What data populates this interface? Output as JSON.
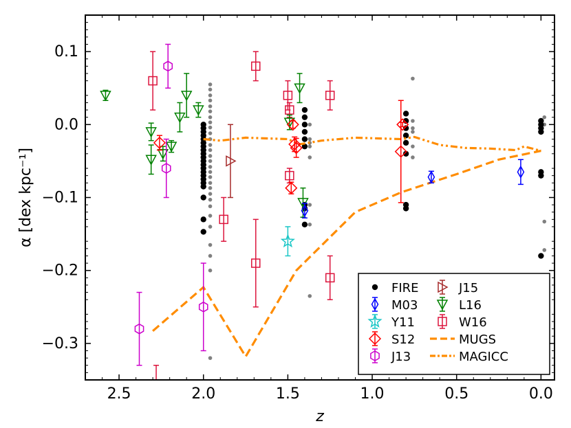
{
  "chart_data": {
    "type": "scatter",
    "xlabel": "z",
    "ylabel": "α [dex kpc⁻¹]",
    "xlim": [
      2.7,
      -0.08
    ],
    "ylim": [
      -0.35,
      0.15
    ],
    "x_inverted": true,
    "xticks": [
      2.5,
      2.0,
      1.5,
      1.0,
      0.5,
      0.0
    ],
    "xtick_labels": [
      "2.5",
      "2.0",
      "1.5",
      "1.0",
      "0.5",
      "0.0"
    ],
    "yticks": [
      0.1,
      0.0,
      -0.1,
      -0.2,
      -0.3
    ],
    "ytick_labels": [
      "0.1",
      "0.0",
      "−0.1",
      "−0.2",
      "−0.3"
    ],
    "grid": false,
    "legend_position": "lower-right",
    "legend_items": [
      "FIRE",
      "M03",
      "Y11",
      "S12",
      "J13",
      "J15",
      "L16",
      "W16",
      "MUGS",
      "MAGICC"
    ],
    "series": [
      {
        "name": "FIRE",
        "color": "#000000",
        "marker": "circle-filled",
        "points": [
          [
            2.0,
            0.0
          ],
          [
            2.0,
            -0.005
          ],
          [
            2.0,
            -0.01
          ],
          [
            2.0,
            -0.015
          ],
          [
            2.0,
            -0.02
          ],
          [
            2.0,
            -0.025
          ],
          [
            2.0,
            -0.03
          ],
          [
            2.0,
            -0.035
          ],
          [
            2.0,
            -0.04
          ],
          [
            2.0,
            -0.045
          ],
          [
            2.0,
            -0.05
          ],
          [
            2.0,
            -0.055
          ],
          [
            2.0,
            -0.06
          ],
          [
            2.0,
            -0.065
          ],
          [
            2.0,
            -0.07
          ],
          [
            2.0,
            -0.075
          ],
          [
            2.0,
            -0.08
          ],
          [
            2.0,
            -0.085
          ],
          [
            2.0,
            -0.1
          ],
          [
            2.0,
            -0.13
          ],
          [
            2.0,
            -0.147
          ],
          [
            1.4,
            0.02
          ],
          [
            1.4,
            0.01
          ],
          [
            1.4,
            0.0
          ],
          [
            1.4,
            -0.01
          ],
          [
            1.4,
            -0.02
          ],
          [
            1.4,
            -0.03
          ],
          [
            1.4,
            -0.11
          ],
          [
            1.4,
            -0.115
          ],
          [
            1.4,
            -0.137
          ],
          [
            0.8,
            0.015
          ],
          [
            0.8,
            0.005
          ],
          [
            0.8,
            -0.005
          ],
          [
            0.8,
            -0.015
          ],
          [
            0.8,
            -0.025
          ],
          [
            0.8,
            -0.04
          ],
          [
            0.8,
            -0.11
          ],
          [
            0.8,
            -0.115
          ],
          [
            0.0,
            0.005
          ],
          [
            0.0,
            0.0
          ],
          [
            0.0,
            -0.005
          ],
          [
            0.0,
            -0.01
          ],
          [
            0.0,
            -0.065
          ],
          [
            0.0,
            -0.07
          ],
          [
            0.0,
            -0.18
          ]
        ]
      },
      {
        "name": "FIRE (grey)",
        "color": "#808080",
        "marker": "circle-small",
        "points": [
          [
            1.96,
            0.055
          ],
          [
            1.96,
            0.048
          ],
          [
            1.96,
            0.04
          ],
          [
            1.96,
            0.033
          ],
          [
            1.96,
            0.025
          ],
          [
            1.96,
            0.018
          ],
          [
            1.96,
            0.01
          ],
          [
            1.96,
            0.003
          ],
          [
            1.96,
            -0.004
          ],
          [
            1.96,
            -0.012
          ],
          [
            1.96,
            -0.02
          ],
          [
            1.96,
            -0.028
          ],
          [
            1.96,
            -0.035
          ],
          [
            1.96,
            -0.043
          ],
          [
            1.96,
            -0.05
          ],
          [
            1.96,
            -0.058
          ],
          [
            1.96,
            -0.065
          ],
          [
            1.96,
            -0.072
          ],
          [
            1.96,
            -0.08
          ],
          [
            1.96,
            -0.087
          ],
          [
            1.96,
            -0.095
          ],
          [
            1.96,
            -0.103
          ],
          [
            1.96,
            -0.112
          ],
          [
            1.96,
            -0.125
          ],
          [
            1.96,
            -0.14
          ],
          [
            1.96,
            -0.165
          ],
          [
            1.96,
            -0.18
          ],
          [
            1.96,
            -0.2
          ],
          [
            1.96,
            -0.32
          ],
          [
            1.37,
            0.0
          ],
          [
            1.37,
            -0.02
          ],
          [
            1.37,
            -0.025
          ],
          [
            1.37,
            -0.03
          ],
          [
            1.37,
            -0.045
          ],
          [
            1.37,
            -0.11
          ],
          [
            1.37,
            -0.137
          ],
          [
            1.37,
            -0.235
          ],
          [
            0.76,
            0.063
          ],
          [
            0.76,
            0.005
          ],
          [
            0.76,
            -0.005
          ],
          [
            0.76,
            -0.01
          ],
          [
            0.76,
            -0.03
          ],
          [
            0.76,
            -0.045
          ],
          [
            -0.02,
            0.01
          ],
          [
            -0.02,
            0.0
          ],
          [
            -0.02,
            -0.133
          ],
          [
            -0.02,
            -0.172
          ]
        ]
      },
      {
        "name": "M03",
        "color": "#0000ff",
        "marker": "thin-diamond",
        "points": [
          [
            1.4,
            -0.118,
            0.01
          ],
          [
            0.65,
            -0.072,
            0.008
          ],
          [
            0.12,
            -0.065,
            0.017
          ]
        ]
      },
      {
        "name": "Y11",
        "color": "#1ac6c6",
        "marker": "star",
        "points": [
          [
            1.5,
            -0.16,
            0.02
          ]
        ]
      },
      {
        "name": "S12",
        "color": "#ff0000",
        "marker": "diamond",
        "points": [
          [
            2.26,
            -0.025,
            0.01
          ],
          [
            1.48,
            -0.087,
            0.008
          ],
          [
            1.47,
            0.0,
            0.005
          ],
          [
            1.46,
            -0.027,
            0.01
          ],
          [
            1.45,
            -0.032,
            0.013
          ],
          [
            0.83,
            -0.037,
            0.07
          ],
          [
            0.82,
            0.0,
            0.003
          ]
        ]
      },
      {
        "name": "J13",
        "color": "#cc00cc",
        "marker": "hexagon",
        "points": [
          [
            2.38,
            -0.28,
            0.05
          ],
          [
            2.22,
            -0.06,
            0.04
          ],
          [
            2.21,
            0.08,
            0.03
          ],
          [
            2.0,
            -0.25,
            0.06
          ]
        ]
      },
      {
        "name": "J15",
        "color": "#a52a2a",
        "marker": "triangle-right",
        "points": [
          [
            1.84,
            -0.05,
            0.05
          ]
        ]
      },
      {
        "name": "L16",
        "color": "#008000",
        "marker": "triangle-down",
        "points": [
          [
            2.58,
            0.04,
            0.007
          ],
          [
            2.31,
            -0.01,
            0.012
          ],
          [
            2.31,
            -0.048,
            0.02
          ],
          [
            2.24,
            -0.04,
            0.01
          ],
          [
            2.19,
            -0.03,
            0.008
          ],
          [
            2.14,
            0.01,
            0.02
          ],
          [
            2.1,
            0.04,
            0.03
          ],
          [
            2.03,
            0.02,
            0.01
          ],
          [
            1.49,
            0.003,
            0.01
          ],
          [
            1.43,
            0.05,
            0.02
          ],
          [
            1.41,
            -0.107,
            0.02
          ]
        ]
      },
      {
        "name": "W16",
        "color": "#dc143c",
        "marker": "square",
        "points": [
          [
            2.3,
            0.06,
            0.04
          ],
          [
            1.88,
            -0.13,
            0.03
          ],
          [
            1.69,
            0.08,
            0.02
          ],
          [
            1.69,
            -0.19,
            0.06
          ],
          [
            1.5,
            0.04,
            0.02
          ],
          [
            1.49,
            0.02,
            0.01
          ],
          [
            1.49,
            -0.07,
            0.01
          ],
          [
            1.25,
            0.04,
            0.02
          ],
          [
            1.25,
            -0.21,
            0.03
          ],
          [
            2.28,
            -0.36,
            0.03
          ]
        ]
      },
      {
        "name": "MUGS",
        "color": "#ff8c00",
        "marker": "dashed-line",
        "points": [
          [
            2.3,
            -0.283
          ],
          [
            2.0,
            -0.223
          ],
          [
            1.75,
            -0.318
          ],
          [
            1.45,
            -0.2
          ],
          [
            1.1,
            -0.12
          ],
          [
            0.83,
            -0.093
          ],
          [
            0.5,
            -0.068
          ],
          [
            0.25,
            -0.048
          ],
          [
            0.0,
            -0.036
          ]
        ]
      },
      {
        "name": "MAGICC",
        "color": "#ff8c00",
        "marker": "dashdot-line",
        "points": [
          [
            2.0,
            -0.02
          ],
          [
            1.9,
            -0.022
          ],
          [
            1.75,
            -0.018
          ],
          [
            1.5,
            -0.02
          ],
          [
            1.43,
            -0.027
          ],
          [
            1.3,
            -0.022
          ],
          [
            1.1,
            -0.018
          ],
          [
            0.83,
            -0.02
          ],
          [
            0.75,
            -0.017
          ],
          [
            0.6,
            -0.028
          ],
          [
            0.45,
            -0.032
          ],
          [
            0.3,
            -0.033
          ],
          [
            0.15,
            -0.035
          ],
          [
            0.1,
            -0.03
          ],
          [
            0.0,
            -0.036
          ]
        ]
      }
    ]
  }
}
